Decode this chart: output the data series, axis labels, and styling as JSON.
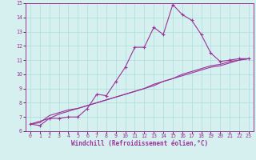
{
  "xlabel": "Windchill (Refroidissement éolien,°C)",
  "x_values": [
    0,
    1,
    2,
    3,
    4,
    5,
    6,
    7,
    8,
    9,
    10,
    11,
    12,
    13,
    14,
    15,
    16,
    17,
    18,
    19,
    20,
    21,
    22,
    23
  ],
  "line1_y": [
    6.5,
    6.4,
    6.9,
    6.9,
    7.0,
    7.0,
    7.6,
    8.6,
    8.5,
    9.5,
    10.5,
    11.9,
    11.9,
    13.3,
    12.8,
    14.9,
    14.2,
    13.8,
    12.8,
    11.5,
    10.9,
    11.0,
    11.1,
    11.1
  ],
  "line2_y": [
    6.5,
    6.6,
    7.1,
    7.3,
    7.5,
    7.6,
    7.8,
    8.0,
    8.2,
    8.4,
    8.6,
    8.8,
    9.0,
    9.2,
    9.5,
    9.7,
    9.9,
    10.1,
    10.3,
    10.5,
    10.6,
    10.8,
    11.0,
    11.1
  ],
  "line3_y": [
    6.5,
    6.7,
    6.9,
    7.2,
    7.4,
    7.6,
    7.8,
    8.0,
    8.2,
    8.4,
    8.6,
    8.8,
    9.0,
    9.3,
    9.5,
    9.7,
    10.0,
    10.2,
    10.4,
    10.6,
    10.7,
    10.9,
    11.0,
    11.1
  ],
  "line_color": "#993399",
  "bg_color": "#d6f0f0",
  "grid_color": "#aadddd",
  "ylim": [
    6,
    15
  ],
  "yticks": [
    6,
    7,
    8,
    9,
    10,
    11,
    12,
    13,
    14,
    15
  ],
  "xticks": [
    0,
    1,
    2,
    3,
    4,
    5,
    6,
    7,
    8,
    9,
    10,
    11,
    12,
    13,
    14,
    15,
    16,
    17,
    18,
    19,
    20,
    21,
    22,
    23
  ],
  "marker": "+"
}
